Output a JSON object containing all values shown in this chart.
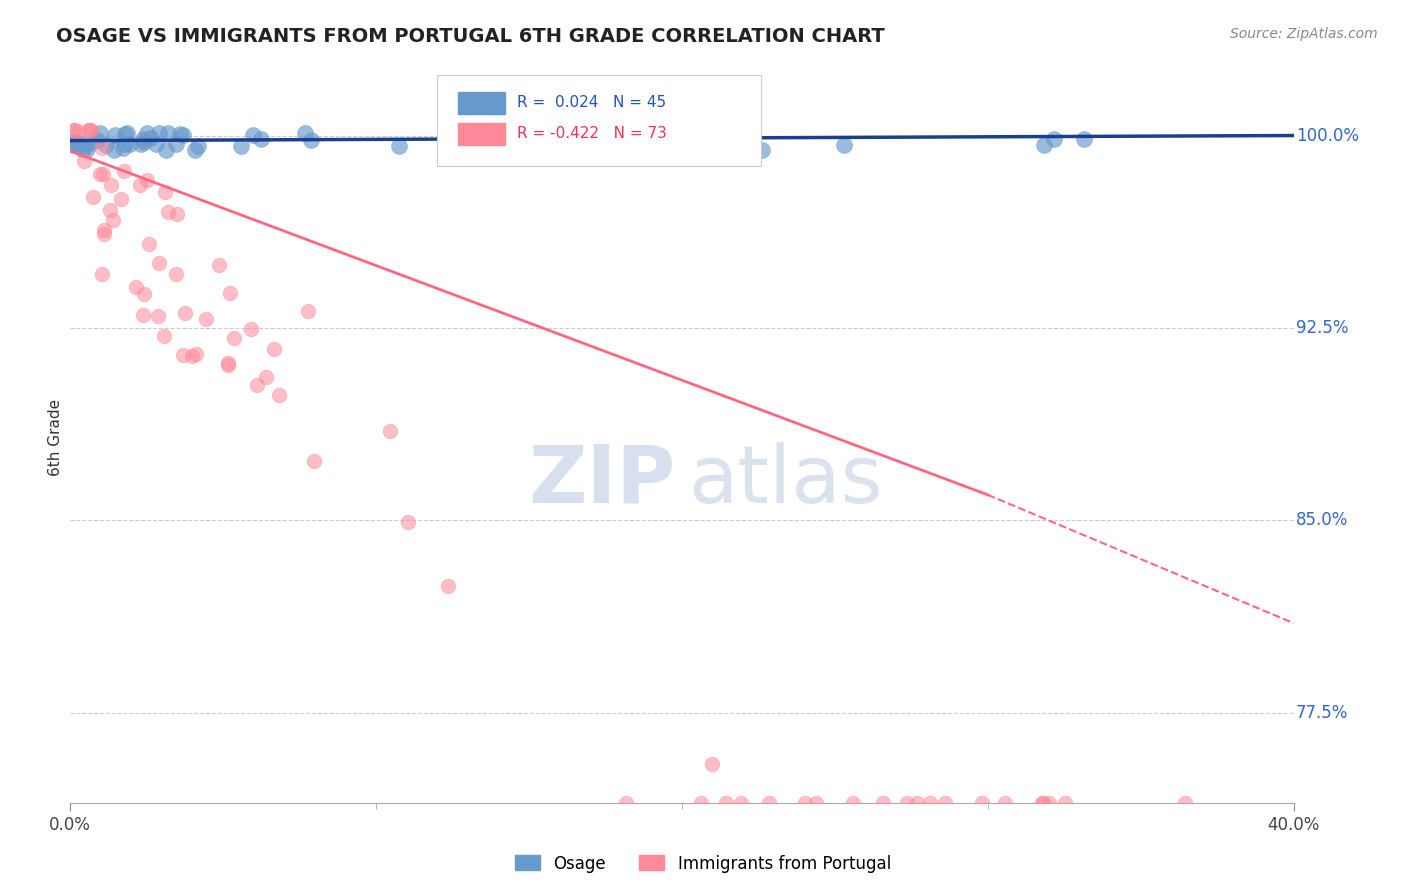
{
  "title": "OSAGE VS IMMIGRANTS FROM PORTUGAL 6TH GRADE CORRELATION CHART",
  "source_text": "Source: ZipAtlas.com",
  "ylabel": "6th Grade",
  "xlim": [
    0.0,
    0.4
  ],
  "ylim": [
    0.74,
    1.025
  ],
  "ytick_labels": [
    "100.0%",
    "92.5%",
    "85.0%",
    "77.5%"
  ],
  "ytick_positions": [
    1.0,
    0.925,
    0.85,
    0.775
  ],
  "blue_R": 0.024,
  "blue_N": 45,
  "pink_R": -0.422,
  "pink_N": 73,
  "blue_color": "#6699CC",
  "pink_color": "#FF8899",
  "blue_line_color": "#1a3f8f",
  "pink_line_color": "#FF6680",
  "legend_label_blue": "Osage",
  "legend_label_pink": "Immigrants from Portugal"
}
